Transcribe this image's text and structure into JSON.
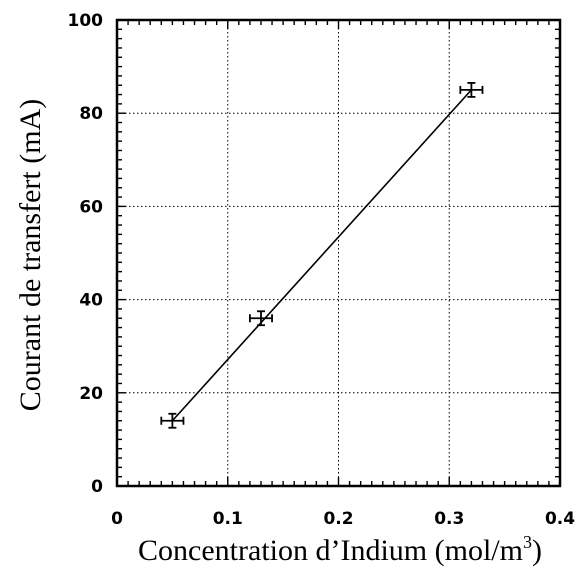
{
  "chart_data": {
    "type": "scatter",
    "title": "",
    "xlabel": "Concentration d’Indium (mol/m",
    "xlabel_sup": "3",
    "xlabel_end": ")",
    "ylabel": "Courant de transfert (mA)",
    "xlim": [
      0,
      0.4
    ],
    "ylim": [
      0,
      100
    ],
    "xticks": [
      0,
      0.1,
      0.2,
      0.3,
      0.4
    ],
    "xtick_labels": [
      "0",
      "0.1",
      "0.2",
      "0.3",
      "0.4"
    ],
    "yticks": [
      0,
      20,
      40,
      60,
      80,
      100
    ],
    "ytick_labels": [
      "0",
      "20",
      "40",
      "60",
      "80",
      "100"
    ],
    "grid": true,
    "series": [
      {
        "points": [
          {
            "x": 0.05,
            "y": 14,
            "xerr": 0.01,
            "yerr": 1.5
          },
          {
            "x": 0.13,
            "y": 36,
            "xerr": 0.01,
            "yerr": 1.5
          },
          {
            "x": 0.32,
            "y": 85,
            "xerr": 0.01,
            "yerr": 1.5
          }
        ],
        "fit_line": {
          "x": [
            0.05,
            0.32
          ],
          "y": [
            14,
            85
          ]
        }
      }
    ]
  }
}
